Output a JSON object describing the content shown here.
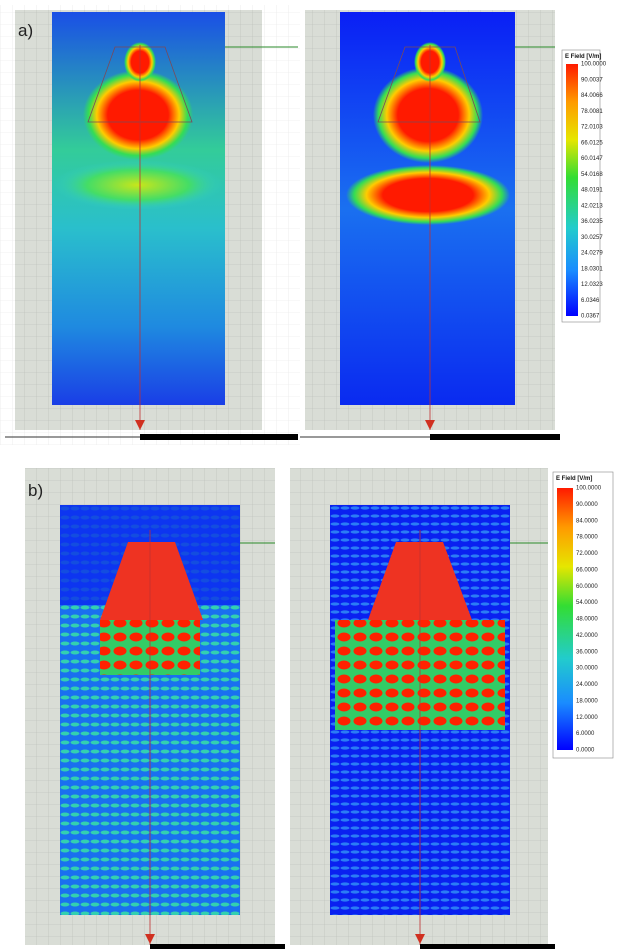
{
  "panels": [
    {
      "label": "a)",
      "legend": {
        "title": "E Field [V/m]",
        "labels": [
          "100.0000",
          "90.0037",
          "84.0066",
          "78.0081",
          "72.0103",
          "66.0125",
          "60.0147",
          "54.0168",
          "48.0191",
          "42.0213",
          "36.0235",
          "30.0257",
          "24.0279",
          "18.0301",
          "12.0323",
          "6.0346",
          "0.0367"
        ]
      }
    },
    {
      "label": "b)",
      "legend": {
        "title": "E Field [V/m]",
        "labels": [
          "100.0000",
          "90.0000",
          "84.0000",
          "78.0000",
          "72.0000",
          "66.0000",
          "60.0000",
          "54.0000",
          "48.0000",
          "42.0000",
          "36.0000",
          "30.0000",
          "24.0000",
          "18.0000",
          "12.0000",
          "6.0000",
          "0.0000"
        ]
      }
    }
  ]
}
